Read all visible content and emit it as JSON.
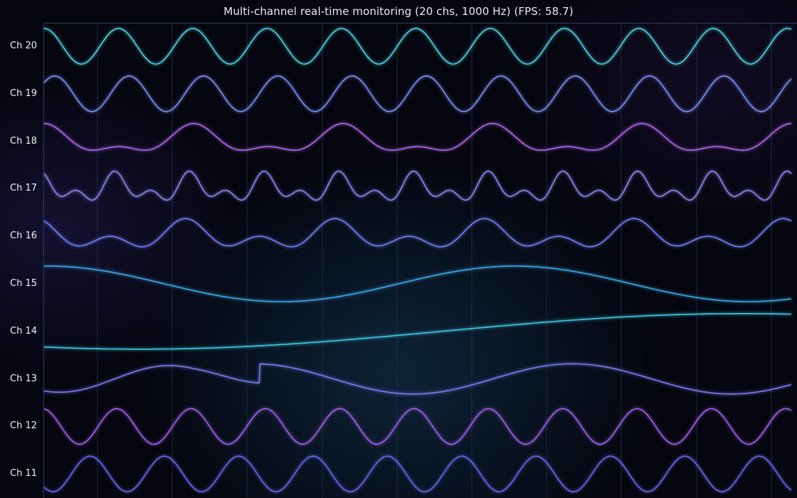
{
  "chart_data": {
    "type": "line",
    "title": "Multi-channel real-time monitoring (20 chs, 1000 Hz) (FPS: 58.7)",
    "xlabel": "",
    "ylabel": "",
    "grid": true,
    "visible_channels": [
      {
        "name": "Ch 20",
        "color": "#4fd0dc",
        "waveform": "sine",
        "cycles": 10.0,
        "amplitude": 0.8,
        "offset": 0.0
      },
      {
        "name": "Ch 19",
        "color": "#7b8ef0",
        "waveform": "sine",
        "cycles": 10.0,
        "amplitude": 0.8,
        "offset": 0.0
      },
      {
        "name": "Ch 18",
        "color": "#b066e8",
        "waveform": "two-tone",
        "cycles": 10.0,
        "amplitude": 0.8,
        "offset": 0.0
      },
      {
        "name": "Ch 17",
        "color": "#8e86ec",
        "waveform": "multi-tone",
        "cycles": 10.0,
        "amplitude": 0.8,
        "offset": 0.0
      },
      {
        "name": "Ch 16",
        "color": "#6f7ff0",
        "waveform": "two-tone",
        "cycles": 10.0,
        "amplitude": 0.8,
        "offset": 0.0
      },
      {
        "name": "Ch 15",
        "color": "#3ba8e6",
        "waveform": "sine",
        "cycles": 1.6,
        "amplitude": 0.8,
        "offset": 0.0
      },
      {
        "name": "Ch 14",
        "color": "#3ec8e0",
        "waveform": "sine",
        "cycles": 0.7,
        "amplitude": 0.8,
        "offset": 0.0
      },
      {
        "name": "Ch 13",
        "color": "#7b7af0",
        "waveform": "sine-with-sweep",
        "cycles": 3.0,
        "amplitude": 0.8,
        "offset": 0.0
      },
      {
        "name": "Ch 12",
        "color": "#a060e6",
        "waveform": "sine",
        "cycles": 10.0,
        "amplitude": 0.8,
        "offset": 0.0
      },
      {
        "name": "Ch 11",
        "color": "#6a66ea",
        "waveform": "sine",
        "cycles": 10.0,
        "amplitude": 0.8,
        "offset": 0.0
      }
    ]
  }
}
